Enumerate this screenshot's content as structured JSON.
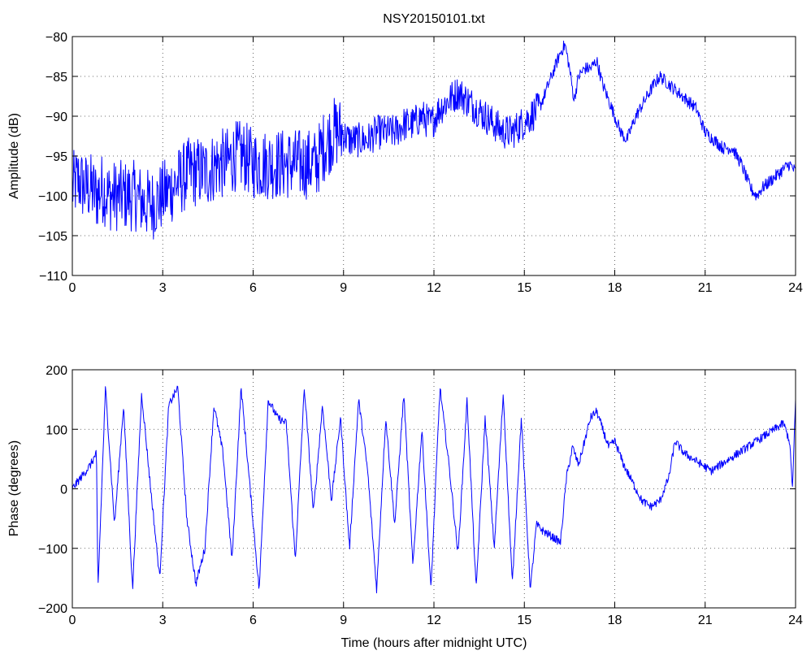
{
  "chart_data": [
    {
      "type": "line",
      "title": "NSY20150101.txt",
      "xlabel": "",
      "ylabel": "Amplitude (dB)",
      "xlim": [
        0,
        24
      ],
      "ylim": [
        -110,
        -80
      ],
      "xticks": [
        "0",
        "3",
        "6",
        "9",
        "12",
        "15",
        "18",
        "21",
        "24"
      ],
      "yticks": [
        "−80",
        "−85",
        "−90",
        "−95",
        "−100",
        "−105",
        "−110"
      ],
      "grid": true,
      "color": "#0000ff",
      "series": [
        {
          "x": [
            0,
            0.2,
            0.4,
            0.6,
            0.8,
            1.0,
            1.2,
            1.5,
            1.8,
            2.1,
            2.4,
            2.7,
            3.0,
            3.3,
            3.6,
            3.9,
            4.2,
            4.5,
            4.8,
            5.1,
            5.4,
            5.7,
            6.0,
            6.3,
            6.6,
            6.9,
            7.2,
            7.5,
            7.8,
            8.1,
            8.3,
            8.5,
            8.7,
            8.9,
            9.2,
            9.5,
            9.8,
            10.1,
            10.4,
            10.7,
            11.0,
            11.3,
            11.6,
            11.9,
            12.2,
            12.5,
            12.8,
            13.1,
            13.4,
            13.7,
            14.0,
            14.3,
            14.6,
            14.9,
            15.2,
            15.5,
            15.8,
            16.0,
            16.2,
            16.35,
            16.5,
            16.65,
            16.8,
            17.0,
            17.2,
            17.4,
            17.6,
            17.8,
            18.0,
            18.2,
            18.4,
            18.7,
            19.0,
            19.3,
            19.5,
            19.8,
            20.1,
            20.4,
            20.7,
            21.0,
            21.3,
            21.6,
            21.9,
            22.2,
            22.5,
            22.7,
            22.9,
            23.2,
            23.5,
            23.8,
            24.0
          ],
          "values": [
            -99,
            -98,
            -99,
            -99,
            -100,
            -99,
            -100,
            -100,
            -100,
            -100,
            -101,
            -101,
            -100,
            -99,
            -98,
            -97,
            -97,
            -97,
            -96,
            -96,
            -95,
            -95,
            -96,
            -96,
            -96,
            -96,
            -96,
            -96,
            -96,
            -96,
            -94,
            -93,
            -92,
            -92,
            -93,
            -93,
            -93,
            -92,
            -92,
            -92,
            -91,
            -91,
            -90,
            -91,
            -89,
            -88,
            -87,
            -88,
            -89,
            -90,
            -91,
            -92,
            -92,
            -91,
            -90,
            -89,
            -86,
            -84,
            -82,
            -81,
            -84,
            -88,
            -85,
            -84,
            -84,
            -83,
            -86,
            -88,
            -90,
            -92,
            -93,
            -90,
            -88,
            -86,
            -85,
            -86,
            -87,
            -88,
            -89,
            -92,
            -93,
            -94,
            -94,
            -96,
            -99,
            -100,
            -99,
            -98,
            -97,
            -96,
            -97
          ]
        }
      ]
    },
    {
      "type": "line",
      "title": "",
      "xlabel": "Time (hours after midnight UTC)",
      "ylabel": "Phase (degrees)",
      "xlim": [
        0,
        24
      ],
      "ylim": [
        -200,
        200
      ],
      "xticks": [
        "0",
        "3",
        "6",
        "9",
        "12",
        "15",
        "18",
        "21",
        "24"
      ],
      "yticks": [
        "200",
        "100",
        "0",
        "−100",
        "−200"
      ],
      "grid": true,
      "color": "#0000ff",
      "series": [
        {
          "x": [
            0,
            0.3,
            0.6,
            0.8,
            0.85,
            1.1,
            1.4,
            1.7,
            2.0,
            2.3,
            2.6,
            2.9,
            3.2,
            3.5,
            3.8,
            4.1,
            4.4,
            4.7,
            5.0,
            5.3,
            5.6,
            5.9,
            6.2,
            6.5,
            6.8,
            7.1,
            7.4,
            7.7,
            8.0,
            8.3,
            8.6,
            8.9,
            9.2,
            9.5,
            9.8,
            10.1,
            10.4,
            10.7,
            11.0,
            11.3,
            11.6,
            11.9,
            12.2,
            12.5,
            12.8,
            13.1,
            13.4,
            13.7,
            14.0,
            14.3,
            14.6,
            14.9,
            15.2,
            15.4,
            15.6,
            15.9,
            16.2,
            16.4,
            16.6,
            16.8,
            17.0,
            17.2,
            17.4,
            17.6,
            17.8,
            18.0,
            18.3,
            18.6,
            18.9,
            19.2,
            19.5,
            19.8,
            20.0,
            20.3,
            20.6,
            20.9,
            21.2,
            21.5,
            21.8,
            22.1,
            22.4,
            22.7,
            23.0,
            23.3,
            23.6,
            23.8,
            23.9,
            24.0
          ],
          "values": [
            0,
            20,
            40,
            60,
            -170,
            170,
            -60,
            140,
            -170,
            160,
            0,
            -150,
            140,
            170,
            -50,
            -160,
            -100,
            140,
            60,
            -120,
            170,
            0,
            -170,
            150,
            120,
            110,
            -120,
            170,
            -40,
            140,
            -20,
            120,
            -100,
            150,
            30,
            -170,
            120,
            -60,
            160,
            -130,
            100,
            -170,
            170,
            40,
            -110,
            150,
            -170,
            120,
            -100,
            160,
            -160,
            120,
            -170,
            -60,
            -70,
            -80,
            -90,
            20,
            70,
            40,
            80,
            120,
            130,
            100,
            70,
            80,
            40,
            10,
            -20,
            -30,
            -20,
            20,
            80,
            60,
            50,
            40,
            30,
            40,
            50,
            60,
            70,
            80,
            90,
            100,
            110,
            80,
            0,
            150
          ]
        }
      ]
    }
  ]
}
